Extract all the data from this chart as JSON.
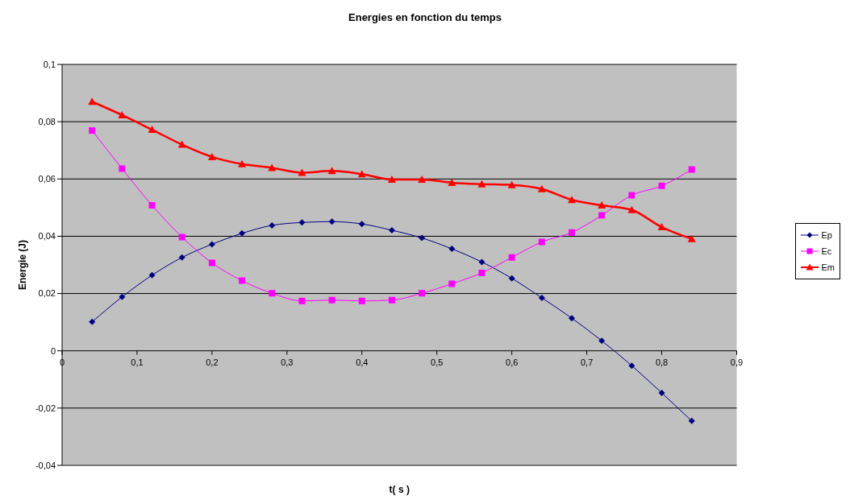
{
  "chart_data": {
    "type": "line",
    "title": "Energies en fonction du temps",
    "xlabel": "t( s )",
    "ylabel": "Energie (J)",
    "x": [
      0.04,
      0.08,
      0.12,
      0.16,
      0.2,
      0.24,
      0.28,
      0.32,
      0.36,
      0.4,
      0.44,
      0.48,
      0.52,
      0.56,
      0.6,
      0.64,
      0.68,
      0.72,
      0.76,
      0.8,
      0.84
    ],
    "series": [
      {
        "name": "Ep",
        "color": "#000080",
        "marker": "diamond",
        "values": [
          0.0101,
          0.0188,
          0.0264,
          0.0326,
          0.0372,
          0.041,
          0.0438,
          0.0448,
          0.0451,
          0.0443,
          0.0421,
          0.0394,
          0.0356,
          0.031,
          0.0253,
          0.0185,
          0.0114,
          0.0035,
          -0.0052,
          -0.0147,
          -0.0245
        ]
      },
      {
        "name": "Ec",
        "color": "#ff00ff",
        "marker": "square",
        "values": [
          0.0769,
          0.0636,
          0.0508,
          0.0397,
          0.0307,
          0.0245,
          0.0201,
          0.0174,
          0.0177,
          0.0174,
          0.0177,
          0.0201,
          0.0234,
          0.0272,
          0.0326,
          0.038,
          0.0413,
          0.0473,
          0.0543,
          0.0576,
          0.0633
        ]
      },
      {
        "name": "Em",
        "color": "#ff0000",
        "marker": "triangle",
        "values": [
          0.087,
          0.0823,
          0.0772,
          0.072,
          0.0677,
          0.0652,
          0.0639,
          0.0622,
          0.0628,
          0.0617,
          0.0598,
          0.0598,
          0.0587,
          0.0582,
          0.0579,
          0.0565,
          0.0527,
          0.0508,
          0.0492,
          0.0432,
          0.0391
        ]
      }
    ],
    "xlim": [
      0,
      0.9
    ],
    "xticks": [
      0,
      {
        "value": 0.1,
        "label": "0,1"
      },
      {
        "value": 0.2,
        "label": "0,2"
      },
      {
        "value": 0.3,
        "label": "0,3"
      },
      {
        "value": 0.4,
        "label": "0,4"
      },
      {
        "value": 0.5,
        "label": "0,5"
      },
      {
        "value": 0.6,
        "label": "0,6"
      },
      {
        "value": 0.7,
        "label": "0,7"
      },
      {
        "value": 0.8,
        "label": "0,8"
      },
      {
        "value": 0.9,
        "label": "0,9"
      }
    ],
    "ylim": [
      -0.04,
      0.1
    ],
    "yticks": [
      {
        "value": -0.04,
        "label": "-0,04"
      },
      {
        "value": -0.02,
        "label": "-0,02"
      },
      0,
      {
        "value": 0.02,
        "label": "0,02"
      },
      {
        "value": 0.04,
        "label": "0,04"
      },
      {
        "value": 0.06,
        "label": "0,06"
      },
      {
        "value": 0.08,
        "label": "0,08"
      },
      {
        "value": 0.1,
        "label": "0,1"
      }
    ],
    "grid": "y",
    "legend": "right",
    "line_style": "solid"
  }
}
